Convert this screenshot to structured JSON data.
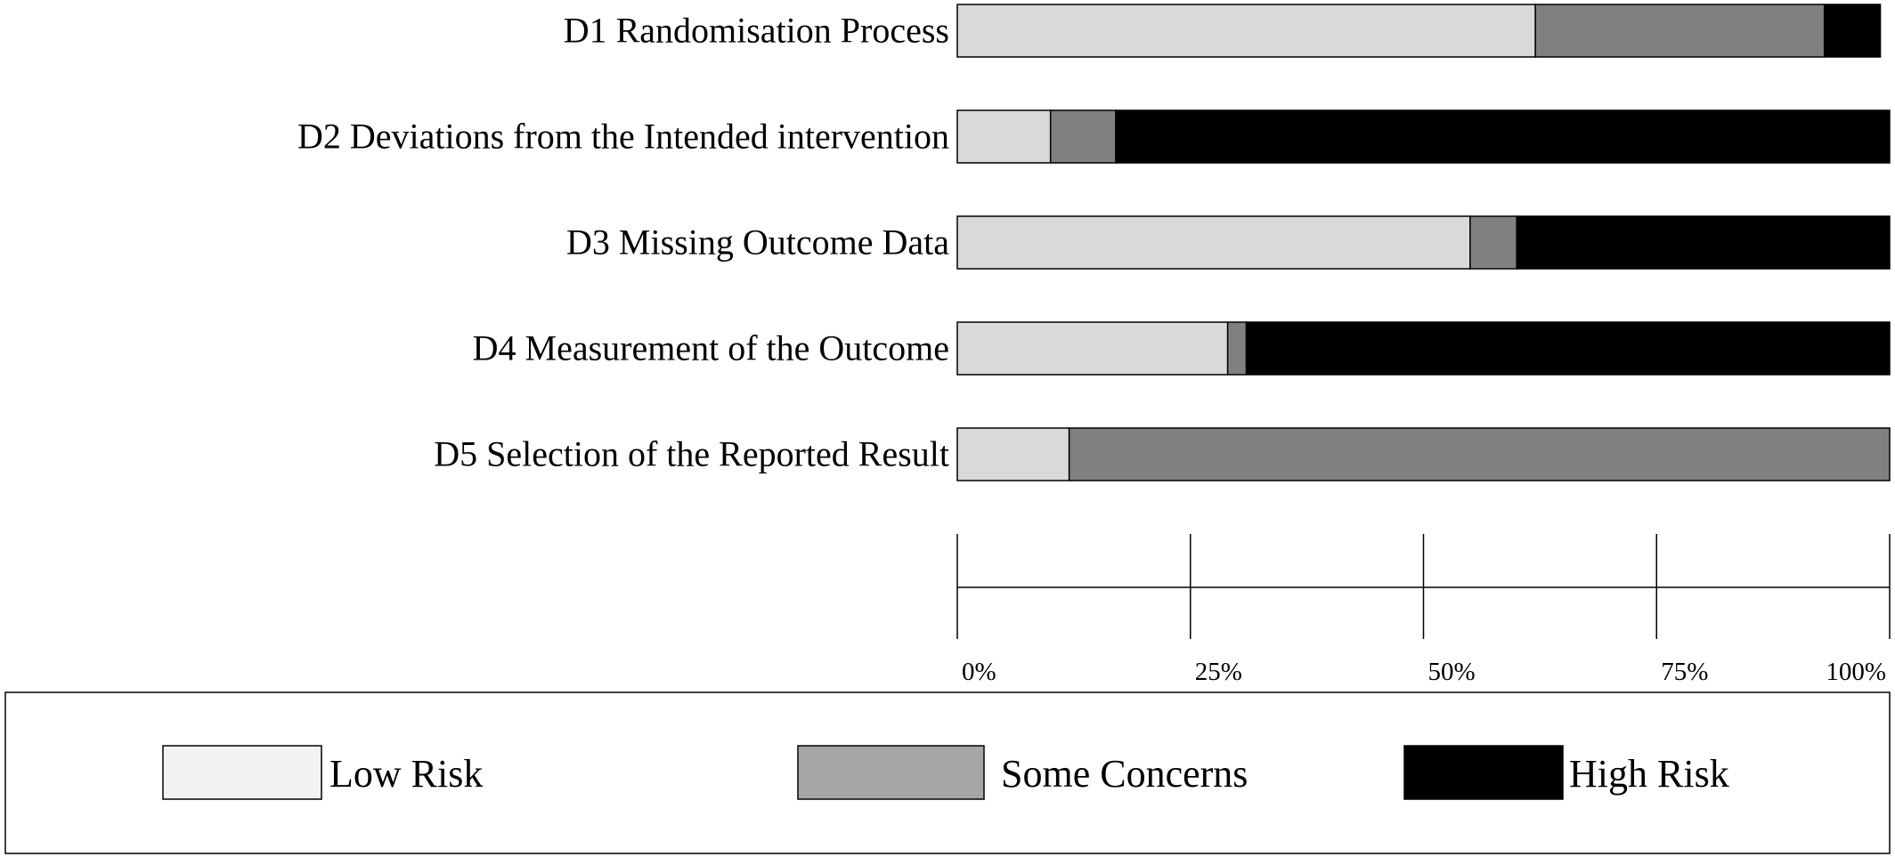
{
  "chart_data": {
    "type": "bar",
    "orientation": "horizontal",
    "stacked": true,
    "normalized": true,
    "categories": [
      "D1 Randomisation Process",
      "D2 Deviations from the Intended intervention",
      "D3 Missing Outcome Data",
      "D4 Measurement of the Outcome",
      "D5 Selection of the Reported Result"
    ],
    "series": [
      {
        "name": "Low Risk",
        "color": "#d9d9d9",
        "values": [
          62,
          10,
          55,
          29,
          12
        ]
      },
      {
        "name": "Some Concerns",
        "color": "#808080",
        "values": [
          31,
          7,
          5,
          2,
          88
        ]
      },
      {
        "name": "High Risk",
        "color": "#000000",
        "values": [
          6,
          83,
          40,
          69,
          0
        ]
      }
    ],
    "xlim": [
      0,
      100
    ],
    "xticks": [
      0,
      25,
      50,
      75,
      100
    ],
    "xtick_labels": [
      "0%",
      "25%",
      "50%",
      "75%",
      "100%"
    ],
    "legend": {
      "placement": "bottom",
      "items": [
        {
          "label": "Low Risk",
          "swatch_color": "#f2f2f2"
        },
        {
          "label": "Some Concerns",
          "swatch_color": "#a6a6a6"
        },
        {
          "label": "High Risk",
          "swatch_color": "#000000"
        }
      ]
    },
    "grid": false
  }
}
